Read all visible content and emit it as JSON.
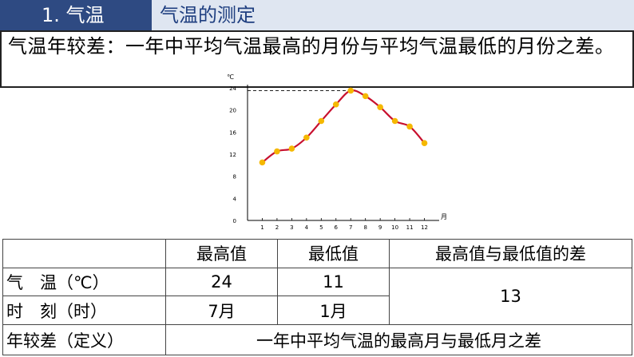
{
  "header": {
    "section": "1. 气温",
    "subtitle": "气温的测定"
  },
  "definition": "气温年较差：一年中平均气温最高的月份与平均气温最低的月份之差。",
  "chart_data": {
    "type": "line",
    "unit_label": "℃",
    "x_label": "月",
    "x": [
      1,
      2,
      3,
      4,
      5,
      6,
      7,
      8,
      9,
      10,
      11,
      12
    ],
    "y": [
      10.5,
      12.5,
      13,
      15,
      18,
      21,
      23.5,
      22.5,
      20.5,
      18,
      17,
      14
    ],
    "y_ticks": [
      0,
      4,
      8,
      12,
      16,
      20,
      24
    ],
    "ylim": [
      0,
      24
    ],
    "xlim": [
      0,
      13
    ],
    "max_reference_line": 23.5,
    "colors": {
      "line": "#c8102e",
      "points": "#f5b800",
      "reference": "#000000"
    }
  },
  "table": {
    "headers": [
      "",
      "最高值",
      "最低值",
      "最高值与最低值的差"
    ],
    "rows": [
      {
        "label": "气　温（℃）",
        "max": "24",
        "min": "11"
      },
      {
        "label": "时　刻（时）",
        "max": "7月",
        "min": "1月"
      }
    ],
    "difference": "13",
    "annual_range_label": "年较差（定义）",
    "annual_range_value": "一年中平均气温的最高月与最低月之差"
  }
}
